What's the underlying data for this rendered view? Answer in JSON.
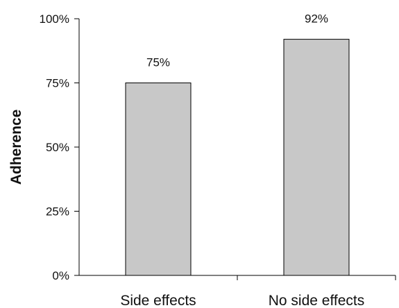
{
  "chart_data": {
    "type": "bar",
    "categories": [
      "Side effects",
      "No side effects"
    ],
    "values": [
      75,
      92
    ],
    "data_labels": [
      "75%",
      "92%"
    ],
    "title": "",
    "xlabel": "",
    "ylabel": "Adherence",
    "ylim": [
      0,
      100
    ],
    "yticks": [
      0,
      25,
      50,
      75,
      100
    ],
    "ytick_labels": [
      "0%",
      "25%",
      "50%",
      "75%",
      "100%"
    ],
    "grid": false,
    "legend": "none",
    "bar_color": "#c8c8c8",
    "bar_edge_color": "#000000"
  }
}
